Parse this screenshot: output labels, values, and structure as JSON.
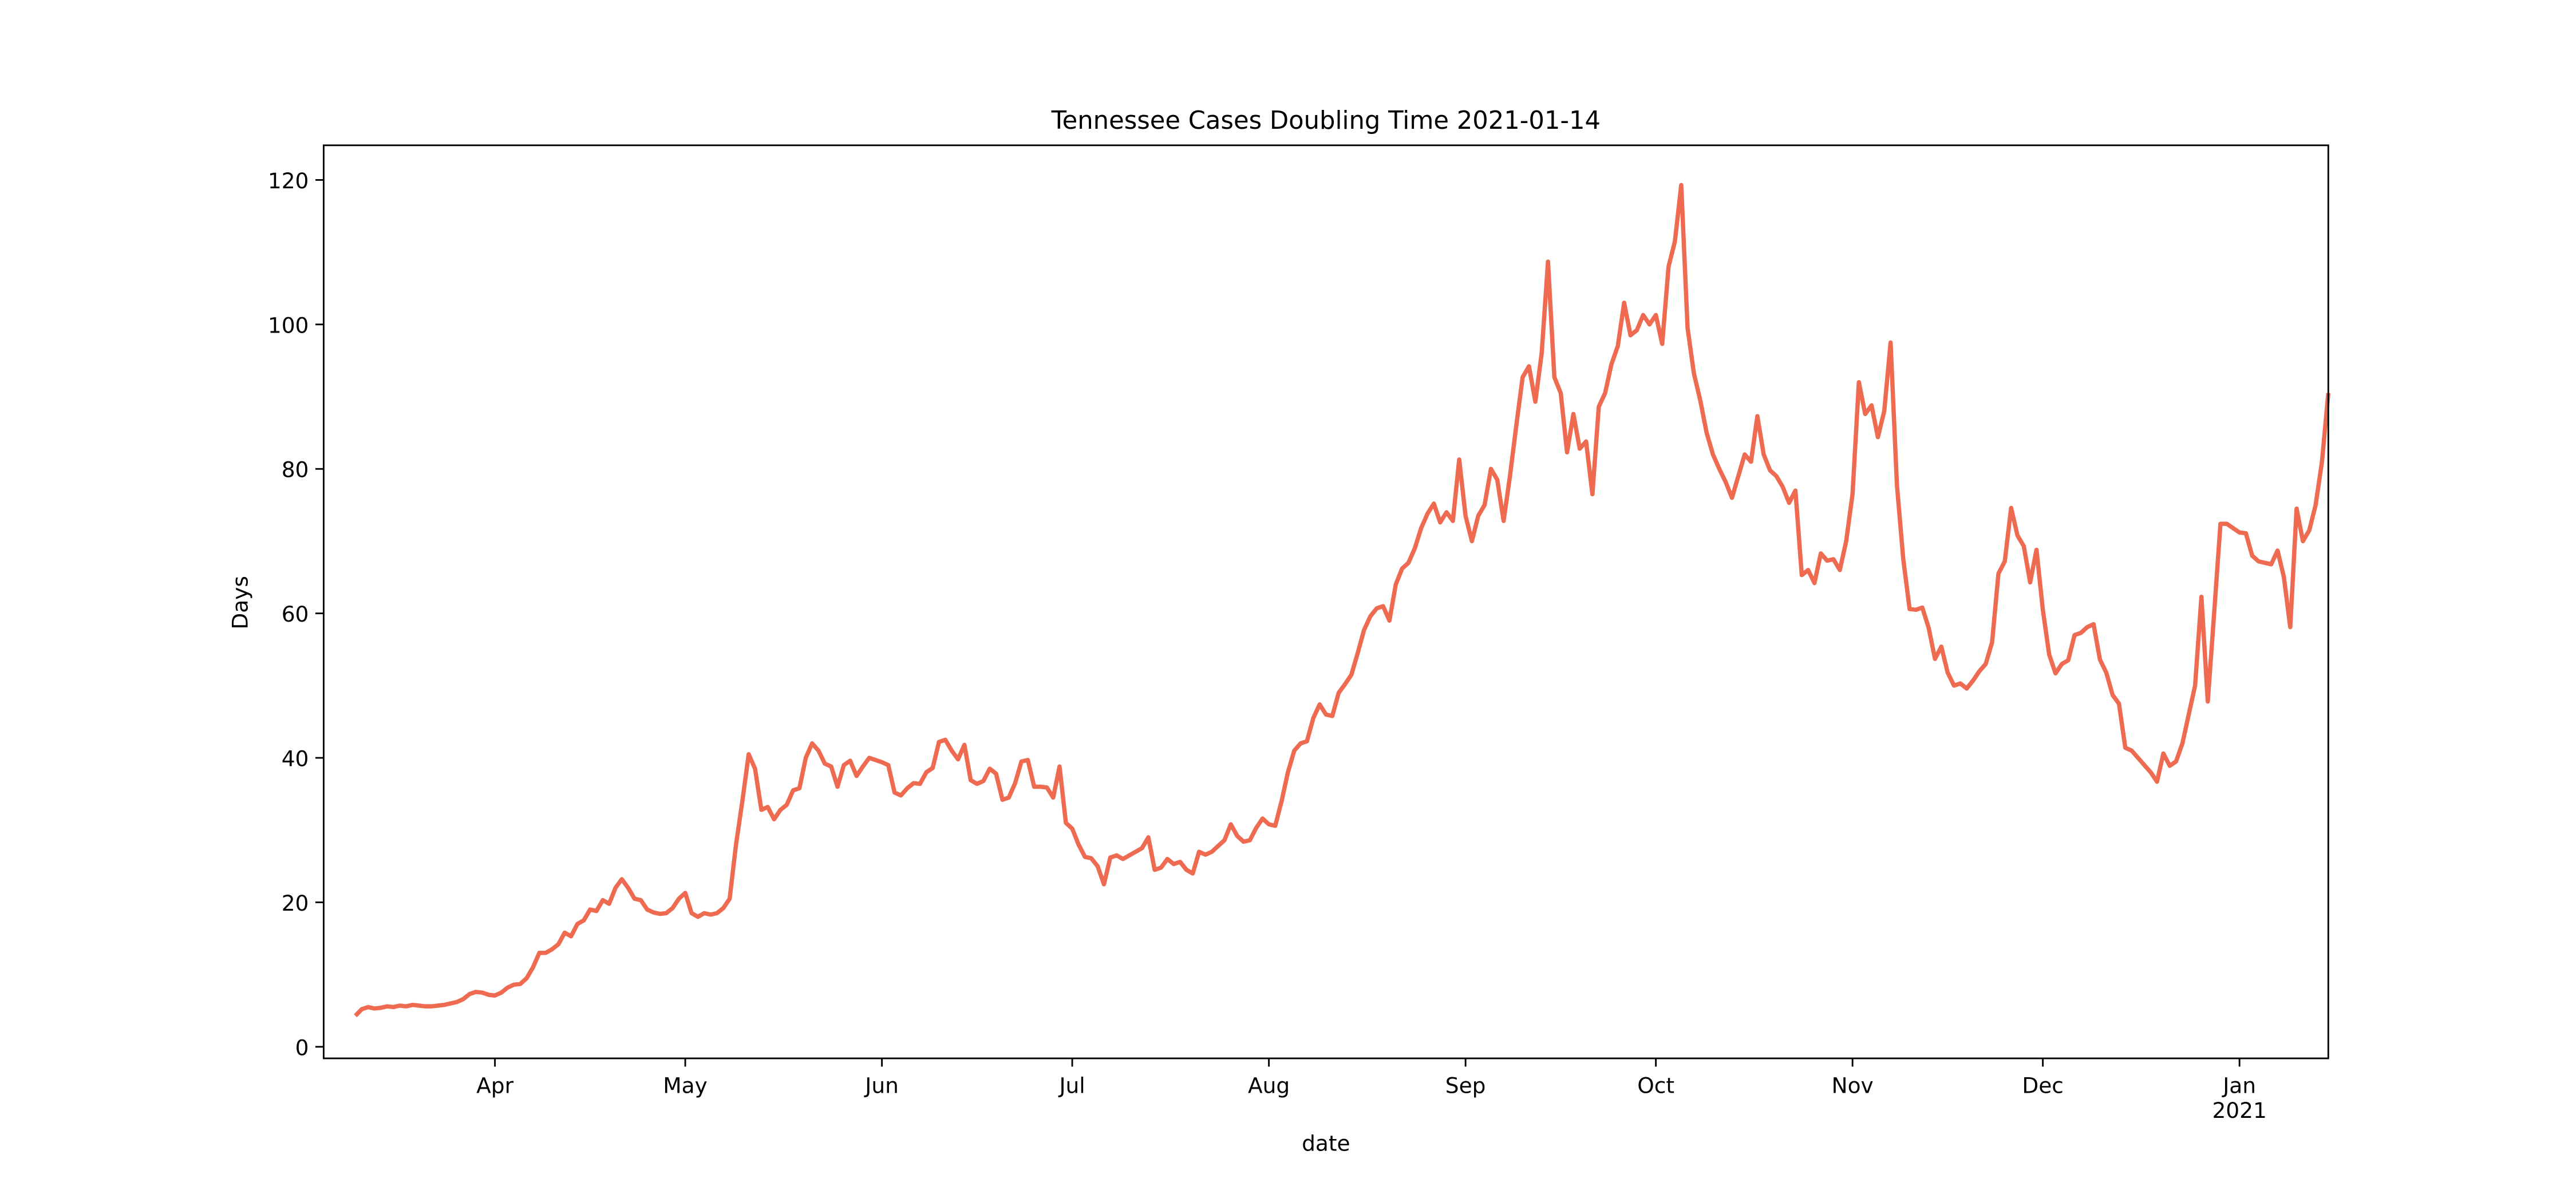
{
  "chart_data": {
    "type": "line",
    "title": "Tennessee Cases Doubling Time 2021-01-14",
    "xlabel": "date",
    "ylabel": "Days",
    "color": "#ee6a50",
    "values": [
      4.3,
      5.2,
      5.5,
      5.3,
      5.4,
      5.6,
      5.5,
      5.7,
      5.6,
      5.8,
      5.7,
      5.6,
      5.6,
      5.7,
      5.8,
      6.0,
      6.2,
      6.6,
      7.3,
      7.6,
      7.5,
      7.2,
      7.1,
      7.5,
      8.2,
      8.6,
      8.7,
      9.5,
      11,
      13,
      13,
      13.5,
      14.2,
      15.8,
      15.3,
      17,
      17.5,
      19,
      18.8,
      20.3,
      19.8,
      22,
      23.2,
      22,
      20.5,
      20.3,
      19,
      18.6,
      18.4,
      18.5,
      19.2,
      20.5,
      21.3,
      18.5,
      18,
      18.5,
      18.3,
      18.5,
      19.2,
      20.5,
      28,
      34,
      40.5,
      38.5,
      32.8,
      33.2,
      31.5,
      32.8,
      33.5,
      35.5,
      35.8,
      40,
      42,
      41,
      39.2,
      38.8,
      36,
      39,
      39.6,
      37.5,
      38.8,
      40,
      39.7,
      39.4,
      39,
      35.2,
      34.8,
      35.8,
      36.5,
      36.4,
      38,
      38.6,
      42.2,
      42.5,
      41,
      39.8,
      41.8,
      36.9,
      36.4,
      36.8,
      38.5,
      37.8,
      34.2,
      34.5,
      36.5,
      39.5,
      39.7,
      36,
      36,
      35.9,
      34.5,
      38.8,
      31,
      30.2,
      28,
      26.3,
      26.1,
      25,
      22.5,
      26.2,
      26.5,
      26,
      26.5,
      27,
      27.5,
      29,
      24.5,
      24.8,
      26,
      25.3,
      25.6,
      24.5,
      24,
      27,
      26.6,
      27,
      27.8,
      28.6,
      30.8,
      29.2,
      28.4,
      28.6,
      30.3,
      31.6,
      30.8,
      30.6,
      34,
      38,
      41,
      42,
      42.3,
      45.5,
      47.4,
      46,
      45.8,
      49,
      50.2,
      51.5,
      54.5,
      57.7,
      59.6,
      60.7,
      61,
      59,
      64,
      66.2,
      67,
      69,
      71.8,
      73.8,
      75.2,
      72.6,
      74,
      72.8,
      81.3,
      73.5,
      70,
      73.5,
      75,
      80,
      78.5,
      72.8,
      79,
      86,
      92.7,
      94.2,
      89.3,
      96,
      108.7,
      92.7,
      90.5,
      82.3,
      87.6,
      82.8,
      83.8,
      76.5,
      88.6,
      90.5,
      94.5,
      97,
      103,
      98.5,
      99.2,
      101.3,
      100,
      101.3,
      97.3,
      108,
      111.5,
      119.3,
      99.5,
      93.2,
      89.5,
      85,
      82,
      80,
      78.2,
      76,
      79,
      82,
      81,
      87.3,
      82,
      79.8,
      79,
      77.5,
      75.3,
      77,
      65.3,
      66,
      64.2,
      68.3,
      67.3,
      67.5,
      66,
      70,
      76.5,
      92,
      87.6,
      88.8,
      84.4,
      88,
      97.5,
      77.8,
      67.5,
      60.6,
      60.5,
      60.8,
      58,
      53.7,
      55.4,
      51.8,
      50,
      50.3,
      49.6,
      50.7,
      52,
      53,
      56,
      65.5,
      67.2,
      74.6,
      70.8,
      69.3,
      64.3,
      68.8,
      60.5,
      54.3,
      51.7,
      53,
      53.5,
      57,
      57.3,
      58.1,
      58.5,
      53.6,
      51.8,
      48.7,
      47.5,
      41.4,
      41,
      40,
      39,
      38,
      36.7,
      40.6,
      38.9,
      39.5,
      42,
      46,
      50,
      62.3,
      47.8,
      60,
      72.4,
      72.4,
      71.8,
      71.2,
      71.1,
      68,
      67.2,
      67,
      66.8,
      68.7,
      65,
      58.1,
      74.5,
      70,
      71.5,
      75,
      81,
      90.5
    ],
    "xlim": [
      -5,
      311
    ],
    "xticks": [
      {
        "value": 22,
        "label": "Apr"
      },
      {
        "value": 52,
        "label": "May"
      },
      {
        "value": 83,
        "label": "Jun"
      },
      {
        "value": 113,
        "label": "Jul"
      },
      {
        "value": 144,
        "label": "Aug"
      },
      {
        "value": 175,
        "label": "Sep"
      },
      {
        "value": 205,
        "label": "Oct"
      },
      {
        "value": 236,
        "label": "Nov"
      },
      {
        "value": 266,
        "label": "Dec"
      },
      {
        "value": 297,
        "label": "Jan\n2021"
      }
    ],
    "ylim": [
      -1.6,
      124.8
    ],
    "yticks": [
      0,
      20,
      40,
      60,
      80,
      100,
      120
    ],
    "grid": false
  }
}
